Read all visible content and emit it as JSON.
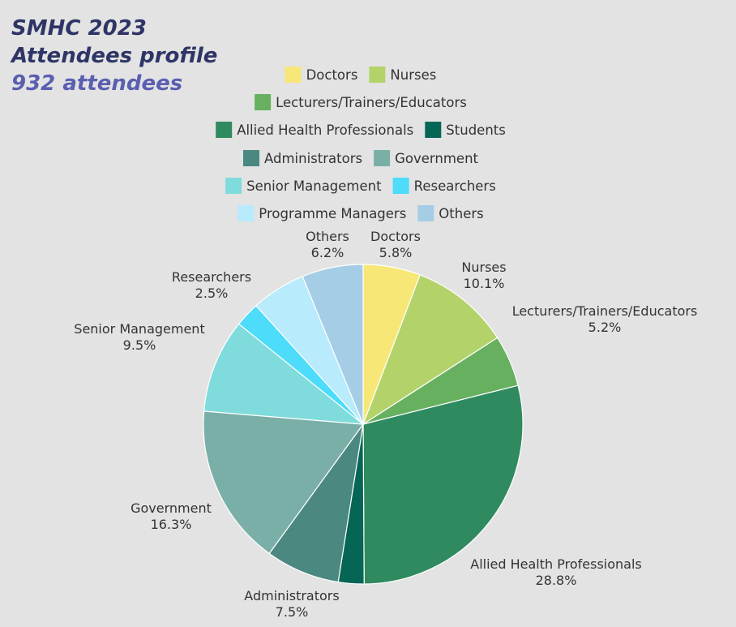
{
  "title_lines": [
    "SMHC 2023",
    "Attendees profile"
  ],
  "subtitle": "932 attendees",
  "chart_data": {
    "type": "pie",
    "title": "SMHC 2023 Attendees profile",
    "subtitle": "932 attendees",
    "legend_position": "top",
    "categories": [
      "Doctors",
      "Nurses",
      "Lecturers/Trainers/Educators",
      "Allied Health Professionals",
      "Students",
      "Administrators",
      "Government",
      "Senior Management",
      "Researchers",
      "Programme Managers",
      "Others"
    ],
    "values": [
      5.8,
      10.1,
      5.2,
      28.8,
      2.6,
      7.5,
      16.3,
      9.5,
      2.5,
      5.5,
      6.2
    ],
    "labels": [
      "5.8%",
      "10.1%",
      "5.2%",
      "28.8%",
      "",
      "7.5%",
      "16.3%",
      "9.5%",
      "2.5%",
      "",
      "6.2%"
    ],
    "colors": [
      "#f7e777",
      "#b3d36a",
      "#66b060",
      "#308a5f",
      "#066655",
      "#4a8880",
      "#7aafa7",
      "#80dbdc",
      "#4ddcfa",
      "#b8ebfb",
      "#a6cde6"
    ],
    "legend_rows": [
      [
        "Doctors",
        "Nurses"
      ],
      [
        "Lecturers/Trainers/Educators"
      ],
      [
        "Allied Health Professionals",
        "Students"
      ],
      [
        "Administrators",
        "Government"
      ],
      [
        "Senior Management",
        "Researchers"
      ],
      [
        "Programme Managers",
        "Others"
      ]
    ]
  }
}
